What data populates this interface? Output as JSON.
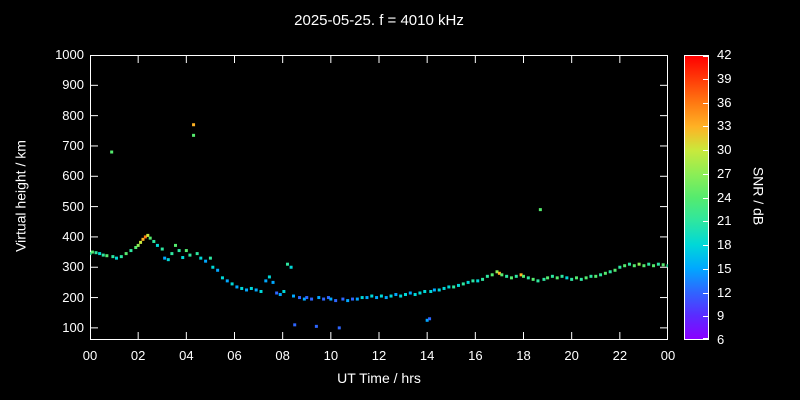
{
  "title": "2025-05-25. f = 4010 kHz",
  "colors": {
    "background": "#000000",
    "axis": "#ffffff",
    "text": "#ffffff"
  },
  "chart_data": {
    "type": "scatter",
    "title": "2025-05-25. f = 4010 kHz",
    "xlabel": "UT Time / hrs",
    "ylabel": "Virtual height / km",
    "xlim": [
      0,
      24
    ],
    "ylim": [
      60,
      1000
    ],
    "grid": false,
    "xtick_labels": [
      "00",
      "02",
      "04",
      "06",
      "08",
      "10",
      "12",
      "14",
      "16",
      "18",
      "20",
      "22",
      "00"
    ],
    "xtick_values": [
      0,
      2,
      4,
      6,
      8,
      10,
      12,
      14,
      16,
      18,
      20,
      22,
      24
    ],
    "ytick_labels": [
      "100",
      "200",
      "300",
      "400",
      "500",
      "600",
      "700",
      "800",
      "900",
      "1000"
    ],
    "ytick_values": [
      100,
      200,
      300,
      400,
      500,
      600,
      700,
      800,
      900,
      1000
    ],
    "colorbar": {
      "label": "SNR / dB",
      "min": 6,
      "max": 42,
      "tick_values": [
        6,
        9,
        12,
        15,
        18,
        21,
        24,
        27,
        30,
        33,
        36,
        39,
        42
      ],
      "stops": [
        {
          "v": 6,
          "c": "#8a00ff"
        },
        {
          "v": 9,
          "c": "#5a2bff"
        },
        {
          "v": 12,
          "c": "#2e66ff"
        },
        {
          "v": 15,
          "c": "#00a8ff"
        },
        {
          "v": 18,
          "c": "#00d8d8"
        },
        {
          "v": 21,
          "c": "#2ee6a0"
        },
        {
          "v": 24,
          "c": "#55eb6e"
        },
        {
          "v": 27,
          "c": "#8cee55"
        },
        {
          "v": 30,
          "c": "#c9e93c"
        },
        {
          "v": 33,
          "c": "#ffb224"
        },
        {
          "v": 36,
          "c": "#ff7a12"
        },
        {
          "v": 39,
          "c": "#ff3c08"
        },
        {
          "v": 42,
          "c": "#ff0000"
        }
      ]
    },
    "points_format": "[ut_hours, virtual_height_km, snr_db]",
    "points": [
      [
        0.0,
        345,
        21
      ],
      [
        0.1,
        350,
        24
      ],
      [
        0.25,
        348,
        21
      ],
      [
        0.4,
        345,
        18
      ],
      [
        0.55,
        340,
        21
      ],
      [
        0.7,
        338,
        24
      ],
      [
        0.9,
        680,
        24
      ],
      [
        0.95,
        335,
        21
      ],
      [
        1.1,
        330,
        18
      ],
      [
        1.3,
        335,
        21
      ],
      [
        1.5,
        345,
        24
      ],
      [
        1.7,
        355,
        21
      ],
      [
        1.9,
        365,
        24
      ],
      [
        2.0,
        372,
        27
      ],
      [
        2.1,
        382,
        30
      ],
      [
        2.2,
        392,
        33
      ],
      [
        2.3,
        400,
        36
      ],
      [
        2.4,
        405,
        30
      ],
      [
        2.5,
        396,
        24
      ],
      [
        2.65,
        385,
        21
      ],
      [
        2.8,
        372,
        18
      ],
      [
        3.0,
        360,
        21
      ],
      [
        3.1,
        330,
        15
      ],
      [
        3.25,
        325,
        18
      ],
      [
        3.4,
        345,
        21
      ],
      [
        3.55,
        372,
        24
      ],
      [
        3.7,
        355,
        21
      ],
      [
        3.85,
        332,
        18
      ],
      [
        4.0,
        355,
        24
      ],
      [
        4.15,
        340,
        21
      ],
      [
        4.3,
        770,
        33
      ],
      [
        4.3,
        735,
        24
      ],
      [
        4.45,
        345,
        21
      ],
      [
        4.6,
        330,
        18
      ],
      [
        4.8,
        320,
        15
      ],
      [
        5.0,
        330,
        21
      ],
      [
        5.1,
        300,
        18
      ],
      [
        5.3,
        290,
        15
      ],
      [
        5.5,
        265,
        18
      ],
      [
        5.7,
        255,
        15
      ],
      [
        5.9,
        245,
        18
      ],
      [
        6.1,
        235,
        15
      ],
      [
        6.3,
        230,
        18
      ],
      [
        6.5,
        225,
        15
      ],
      [
        6.7,
        230,
        18
      ],
      [
        6.9,
        225,
        15
      ],
      [
        7.1,
        220,
        18
      ],
      [
        7.3,
        255,
        15
      ],
      [
        7.45,
        268,
        18
      ],
      [
        7.6,
        250,
        15
      ],
      [
        7.75,
        215,
        12
      ],
      [
        7.9,
        210,
        15
      ],
      [
        8.05,
        220,
        18
      ],
      [
        8.2,
        310,
        21
      ],
      [
        8.35,
        300,
        18
      ],
      [
        8.45,
        205,
        15
      ],
      [
        8.5,
        110,
        12
      ],
      [
        8.7,
        200,
        12
      ],
      [
        8.9,
        195,
        15
      ],
      [
        9.0,
        200,
        12
      ],
      [
        9.2,
        195,
        12
      ],
      [
        9.4,
        105,
        12
      ],
      [
        9.5,
        200,
        15
      ],
      [
        9.7,
        195,
        12
      ],
      [
        9.9,
        200,
        12
      ],
      [
        10.0,
        195,
        15
      ],
      [
        10.2,
        190,
        12
      ],
      [
        10.35,
        100,
        12
      ],
      [
        10.5,
        195,
        12
      ],
      [
        10.7,
        190,
        15
      ],
      [
        10.9,
        195,
        12
      ],
      [
        11.1,
        195,
        15
      ],
      [
        11.3,
        200,
        18
      ],
      [
        11.5,
        200,
        15
      ],
      [
        11.7,
        205,
        18
      ],
      [
        11.9,
        200,
        15
      ],
      [
        12.1,
        205,
        18
      ],
      [
        12.3,
        200,
        15
      ],
      [
        12.5,
        205,
        18
      ],
      [
        12.7,
        210,
        15
      ],
      [
        12.9,
        205,
        18
      ],
      [
        13.1,
        210,
        18
      ],
      [
        13.3,
        215,
        15
      ],
      [
        13.5,
        210,
        18
      ],
      [
        13.7,
        215,
        18
      ],
      [
        13.9,
        220,
        18
      ],
      [
        14.0,
        125,
        15
      ],
      [
        14.1,
        130,
        12
      ],
      [
        14.15,
        220,
        18
      ],
      [
        14.3,
        225,
        15
      ],
      [
        14.5,
        225,
        18
      ],
      [
        14.7,
        230,
        18
      ],
      [
        14.9,
        235,
        18
      ],
      [
        15.1,
        235,
        21
      ],
      [
        15.3,
        240,
        18
      ],
      [
        15.5,
        245,
        21
      ],
      [
        15.7,
        250,
        18
      ],
      [
        15.9,
        255,
        21
      ],
      [
        16.1,
        255,
        18
      ],
      [
        16.3,
        260,
        21
      ],
      [
        16.5,
        270,
        21
      ],
      [
        16.7,
        275,
        24
      ],
      [
        16.9,
        285,
        27
      ],
      [
        17.0,
        280,
        33
      ],
      [
        17.1,
        275,
        24
      ],
      [
        17.3,
        270,
        21
      ],
      [
        17.5,
        265,
        24
      ],
      [
        17.7,
        270,
        21
      ],
      [
        17.9,
        275,
        33
      ],
      [
        18.0,
        270,
        24
      ],
      [
        18.2,
        265,
        21
      ],
      [
        18.4,
        260,
        24
      ],
      [
        18.6,
        255,
        21
      ],
      [
        18.7,
        490,
        24
      ],
      [
        18.85,
        260,
        21
      ],
      [
        19.0,
        265,
        24
      ],
      [
        19.2,
        270,
        21
      ],
      [
        19.4,
        265,
        24
      ],
      [
        19.6,
        270,
        21
      ],
      [
        19.8,
        265,
        18
      ],
      [
        20.0,
        260,
        21
      ],
      [
        20.2,
        265,
        24
      ],
      [
        20.4,
        260,
        21
      ],
      [
        20.6,
        265,
        24
      ],
      [
        20.8,
        270,
        21
      ],
      [
        21.0,
        270,
        24
      ],
      [
        21.2,
        275,
        21
      ],
      [
        21.4,
        280,
        24
      ],
      [
        21.6,
        285,
        21
      ],
      [
        21.8,
        290,
        24
      ],
      [
        22.0,
        300,
        21
      ],
      [
        22.2,
        305,
        24
      ],
      [
        22.4,
        310,
        21
      ],
      [
        22.6,
        305,
        24
      ],
      [
        22.8,
        310,
        27
      ],
      [
        23.0,
        305,
        24
      ],
      [
        23.2,
        310,
        21
      ],
      [
        23.4,
        305,
        24
      ],
      [
        23.6,
        310,
        21
      ],
      [
        23.8,
        308,
        24
      ],
      [
        24.0,
        305,
        21
      ]
    ]
  }
}
